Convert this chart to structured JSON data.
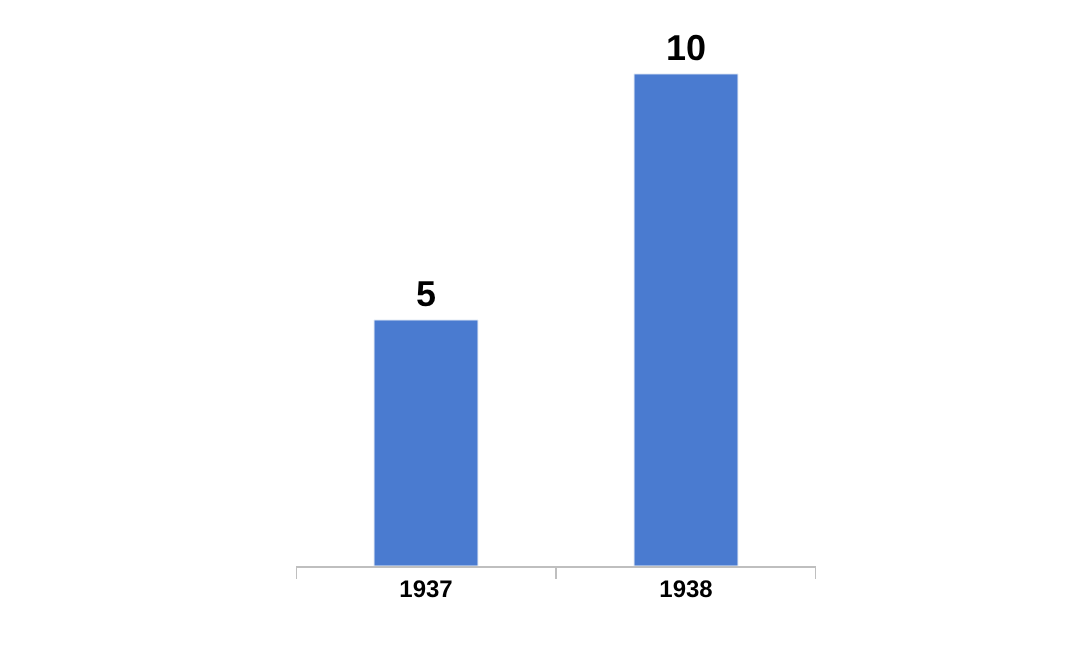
{
  "chart_data": {
    "type": "bar",
    "categories": [
      "1937",
      "1938"
    ],
    "values": [
      5,
      10
    ],
    "color": "#4a7bd0",
    "data_labels": true,
    "tick_labels": "x"
  }
}
